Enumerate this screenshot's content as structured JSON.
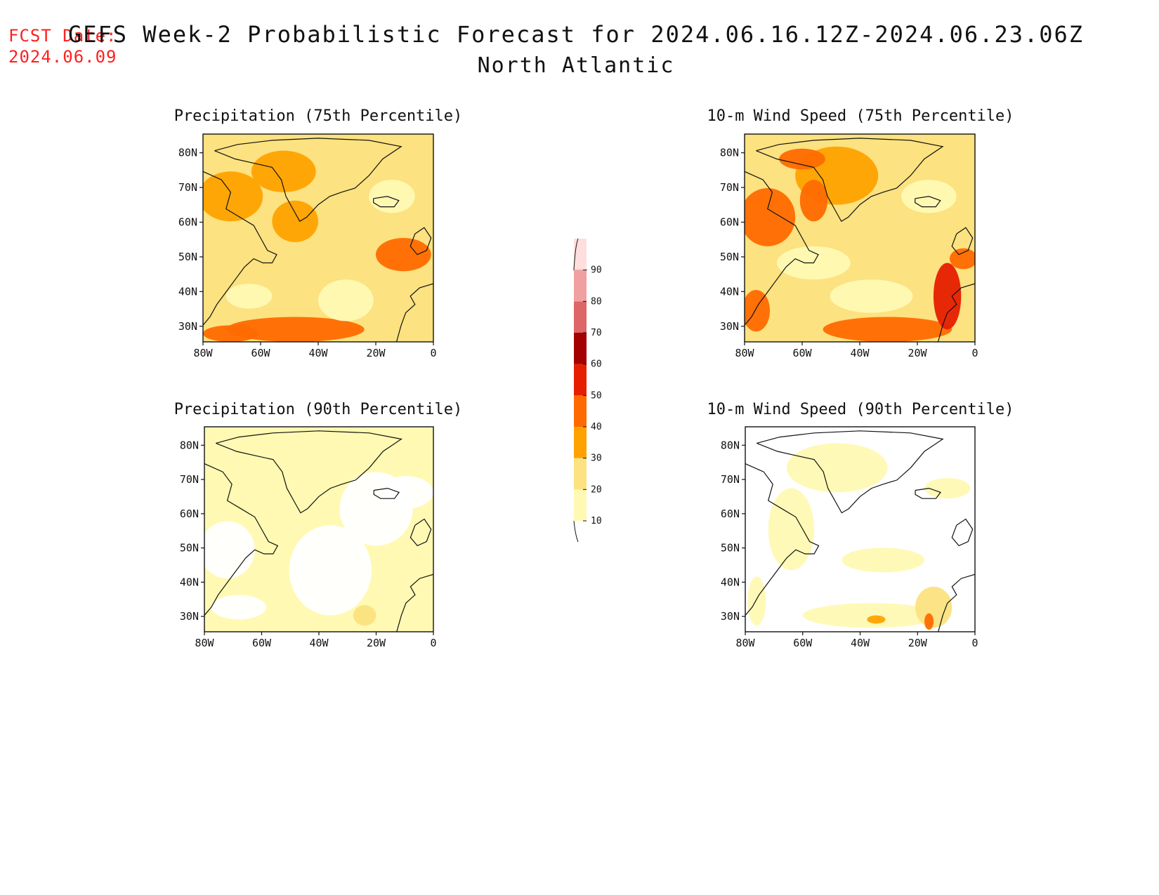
{
  "forecast_date": {
    "label": "FCST Date:",
    "value": "2024.06.09"
  },
  "title": "GEFS Week-2 Probabilistic Forecast for 2024.06.16.12Z-2024.06.23.06Z",
  "region": "North Atlantic",
  "panels": [
    {
      "title": "Precipitation (75th Percentile)"
    },
    {
      "title": "10-m Wind Speed (75th Percentile)"
    },
    {
      "title": "Precipitation (90th Percentile)"
    },
    {
      "title": "10-m Wind Speed (90th Percentile)"
    }
  ],
  "lon_ticks": [
    "80W",
    "60W",
    "40W",
    "20W",
    "0"
  ],
  "lat_ticks": [
    "80N",
    "70N",
    "60N",
    "50N",
    "40N",
    "30N"
  ],
  "colorbar": {
    "levels": [
      "10",
      "20",
      "30",
      "40",
      "50",
      "60",
      "70",
      "80",
      "90"
    ],
    "colors": [
      "#fff9b3",
      "#fce280",
      "#ffa200",
      "#ff6a00",
      "#e61e00",
      "#a50000",
      "#dd6666",
      "#f0a0a0",
      "#ffdede"
    ]
  },
  "colors": {
    "forecast_date": "#ff2020",
    "land_none": "#ffffff"
  }
}
